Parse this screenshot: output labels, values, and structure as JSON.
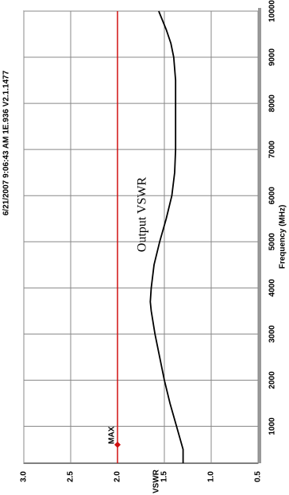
{
  "chart_data": {
    "type": "line",
    "title": "Output VSWR",
    "header": "6/21/2007 9:06:43 AM 1E.936 V2.1.1477",
    "x_label": "Frequency (MHz)",
    "y_label": "VSWR",
    "x": [
      200,
      500,
      1000,
      1500,
      2000,
      2500,
      3000,
      3500,
      3700,
      4000,
      4500,
      5000,
      5500,
      6000,
      6500,
      7000,
      7500,
      8000,
      8500,
      9000,
      9300,
      9600,
      10000
    ],
    "series": [
      {
        "name": "VSWR",
        "color": "#000000",
        "values": [
          1.3,
          1.3,
          1.37,
          1.44,
          1.5,
          1.55,
          1.6,
          1.64,
          1.65,
          1.64,
          1.61,
          1.55,
          1.48,
          1.42,
          1.39,
          1.38,
          1.38,
          1.38,
          1.38,
          1.4,
          1.43,
          1.48,
          1.56
        ]
      }
    ],
    "max_line": {
      "value": 2.0,
      "label": "MAX",
      "color": "#d01010",
      "marker_x": 600
    },
    "xlim": [
      200,
      10000
    ],
    "xticks": [
      1000,
      2000,
      3000,
      4000,
      5000,
      6000,
      7000,
      8000,
      9000,
      10000
    ],
    "ylim": [
      3.0,
      0.5
    ],
    "yticks": [
      {
        "value": 3.0,
        "label": "3.0"
      },
      2.5,
      {
        "value": 2.0,
        "label": "2.0"
      },
      1.5,
      {
        "value": 1.0,
        "label": "1.0"
      },
      0.5
    ],
    "grid": true
  }
}
